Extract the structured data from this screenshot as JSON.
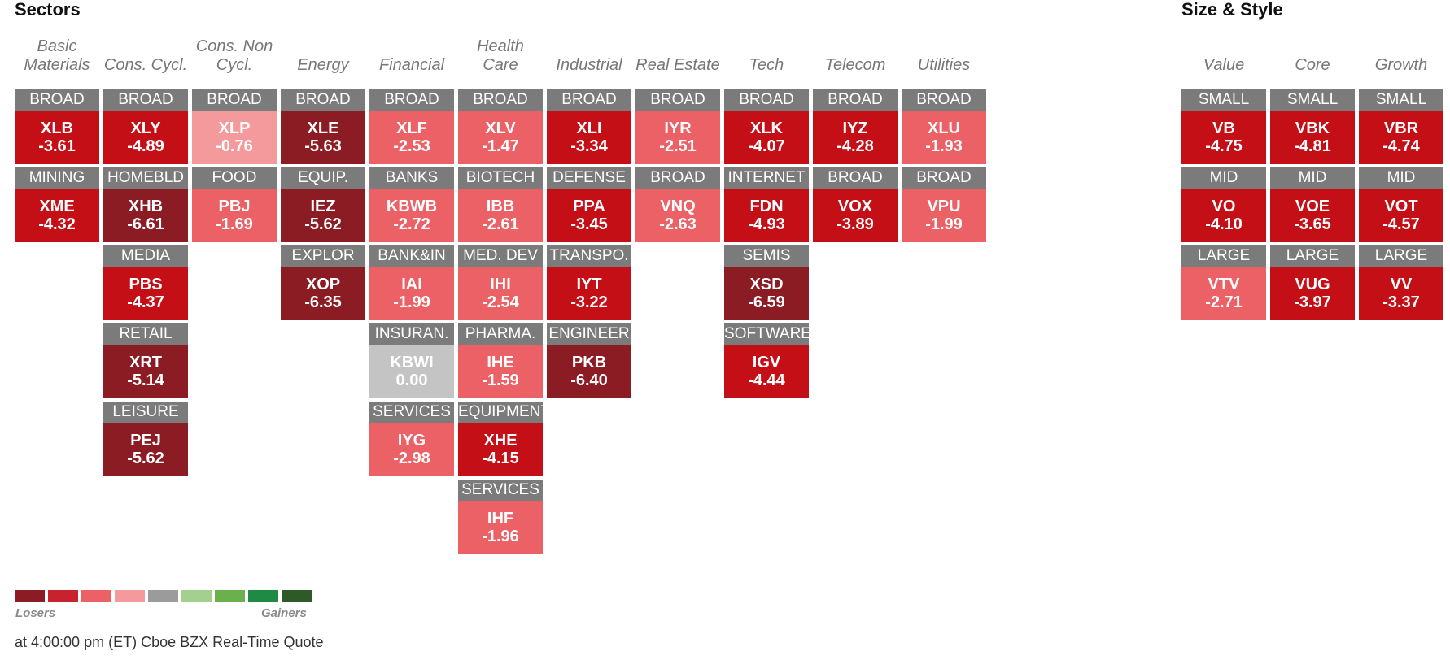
{
  "sectors": {
    "title": "Sectors",
    "columns": [
      {
        "header": "Basic Materials",
        "tiles": [
          {
            "category": "BROAD",
            "ticker": "XLB",
            "change": "-3.61",
            "color": "#c50f17"
          },
          {
            "category": "MINING",
            "ticker": "XME",
            "change": "-4.32",
            "color": "#c50f17"
          }
        ]
      },
      {
        "header": "Cons. Cycl.",
        "tiles": [
          {
            "category": "BROAD",
            "ticker": "XLY",
            "change": "-4.89",
            "color": "#c50f17"
          },
          {
            "category": "HOMEBLD",
            "ticker": "XHB",
            "change": "-6.61",
            "color": "#8b1c24"
          },
          {
            "category": "MEDIA",
            "ticker": "PBS",
            "change": "-4.37",
            "color": "#c50f17"
          },
          {
            "category": "RETAIL",
            "ticker": "XRT",
            "change": "-5.14",
            "color": "#8b1c24"
          },
          {
            "category": "LEISURE",
            "ticker": "PEJ",
            "change": "-5.62",
            "color": "#8b1c24"
          }
        ]
      },
      {
        "header": "Cons. Non Cycl.",
        "tiles": [
          {
            "category": "BROAD",
            "ticker": "XLP",
            "change": "-0.76",
            "color": "#f49a9c"
          },
          {
            "category": "FOOD",
            "ticker": "PBJ",
            "change": "-1.69",
            "color": "#ec6166"
          }
        ]
      },
      {
        "header": "Energy",
        "tiles": [
          {
            "category": "BROAD",
            "ticker": "XLE",
            "change": "-5.63",
            "color": "#8b1c24"
          },
          {
            "category": "EQUIP.",
            "ticker": "IEZ",
            "change": "-5.62",
            "color": "#8b1c24"
          },
          {
            "category": "EXPLOR",
            "ticker": "XOP",
            "change": "-6.35",
            "color": "#8b1c24"
          }
        ]
      },
      {
        "header": "Financial",
        "tiles": [
          {
            "category": "BROAD",
            "ticker": "XLF",
            "change": "-2.53",
            "color": "#ec6166"
          },
          {
            "category": "BANKS",
            "ticker": "KBWB",
            "change": "-2.72",
            "color": "#ec6166"
          },
          {
            "category": "BANK&IN",
            "ticker": "IAI",
            "change": "-1.99",
            "color": "#ec6166"
          },
          {
            "category": "INSURAN.",
            "ticker": "KBWI",
            "change": "0.00",
            "color": "#c4c4c4"
          },
          {
            "category": "SERVICES",
            "ticker": "IYG",
            "change": "-2.98",
            "color": "#ec6166"
          }
        ]
      },
      {
        "header": "Health Care",
        "tiles": [
          {
            "category": "BROAD",
            "ticker": "XLV",
            "change": "-1.47",
            "color": "#ec6166"
          },
          {
            "category": "BIOTECH",
            "ticker": "IBB",
            "change": "-2.61",
            "color": "#ec6166"
          },
          {
            "category": "MED. DEV",
            "ticker": "IHI",
            "change": "-2.54",
            "color": "#ec6166"
          },
          {
            "category": "PHARMA.",
            "ticker": "IHE",
            "change": "-1.59",
            "color": "#ec6166"
          },
          {
            "category": "EQUIPMENT",
            "ticker": "XHE",
            "change": "-4.15",
            "color": "#c50f17"
          },
          {
            "category": "SERVICES",
            "ticker": "IHF",
            "change": "-1.96",
            "color": "#ec6166"
          }
        ]
      },
      {
        "header": "Industrial",
        "tiles": [
          {
            "category": "BROAD",
            "ticker": "XLI",
            "change": "-3.34",
            "color": "#c50f17"
          },
          {
            "category": "DEFENSE",
            "ticker": "PPA",
            "change": "-3.45",
            "color": "#c50f17"
          },
          {
            "category": "TRANSPO.",
            "ticker": "IYT",
            "change": "-3.22",
            "color": "#c50f17"
          },
          {
            "category": "ENGINEER",
            "ticker": "PKB",
            "change": "-6.40",
            "color": "#8b1c24"
          }
        ]
      },
      {
        "header": "Real Estate",
        "tiles": [
          {
            "category": "BROAD",
            "ticker": "IYR",
            "change": "-2.51",
            "color": "#ec6166"
          },
          {
            "category": "BROAD",
            "ticker": "VNQ",
            "change": "-2.63",
            "color": "#ec6166"
          }
        ]
      },
      {
        "header": "Tech",
        "tiles": [
          {
            "category": "BROAD",
            "ticker": "XLK",
            "change": "-4.07",
            "color": "#c50f17"
          },
          {
            "category": "INTERNET",
            "ticker": "FDN",
            "change": "-4.93",
            "color": "#c50f17"
          },
          {
            "category": "SEMIS",
            "ticker": "XSD",
            "change": "-6.59",
            "color": "#8b1c24"
          },
          {
            "category": "SOFTWARE",
            "ticker": "IGV",
            "change": "-4.44",
            "color": "#c50f17"
          }
        ]
      },
      {
        "header": "Telecom",
        "tiles": [
          {
            "category": "BROAD",
            "ticker": "IYZ",
            "change": "-4.28",
            "color": "#c50f17"
          },
          {
            "category": "BROAD",
            "ticker": "VOX",
            "change": "-3.89",
            "color": "#c50f17"
          }
        ]
      },
      {
        "header": "Utilities",
        "tiles": [
          {
            "category": "BROAD",
            "ticker": "XLU",
            "change": "-1.93",
            "color": "#ec6166"
          },
          {
            "category": "BROAD",
            "ticker": "VPU",
            "change": "-1.99",
            "color": "#ec6166"
          }
        ]
      }
    ]
  },
  "size_style": {
    "title": "Size & Style",
    "columns": [
      {
        "header": "Value",
        "tiles": [
          {
            "category": "SMALL",
            "ticker": "VB",
            "change": "-4.75",
            "color": "#c50f17"
          },
          {
            "category": "MID",
            "ticker": "VO",
            "change": "-4.10",
            "color": "#c50f17"
          },
          {
            "category": "LARGE",
            "ticker": "VTV",
            "change": "-2.71",
            "color": "#ec6166"
          }
        ]
      },
      {
        "header": "Core",
        "tiles": [
          {
            "category": "SMALL",
            "ticker": "VBK",
            "change": "-4.81",
            "color": "#c50f17"
          },
          {
            "category": "MID",
            "ticker": "VOE",
            "change": "-3.65",
            "color": "#c50f17"
          },
          {
            "category": "LARGE",
            "ticker": "VUG",
            "change": "-3.97",
            "color": "#c50f17"
          }
        ]
      },
      {
        "header": "Growth",
        "tiles": [
          {
            "category": "SMALL",
            "ticker": "VBR",
            "change": "-4.74",
            "color": "#c50f17"
          },
          {
            "category": "MID",
            "ticker": "VOT",
            "change": "-4.57",
            "color": "#c50f17"
          },
          {
            "category": "LARGE",
            "ticker": "VV",
            "change": "-3.37",
            "color": "#c50f17"
          }
        ]
      }
    ]
  },
  "legend": {
    "colors": [
      "#8b1c24",
      "#c8232c",
      "#ec6166",
      "#f49a9c",
      "#9b9b9b",
      "#a3d08f",
      "#6ab04c",
      "#1e8a44",
      "#2d5a27"
    ],
    "losers_label": "Losers",
    "gainers_label": "Gainers"
  },
  "footer": "at 4:00:00 pm (ET) Cboe BZX Real-Time Quote"
}
